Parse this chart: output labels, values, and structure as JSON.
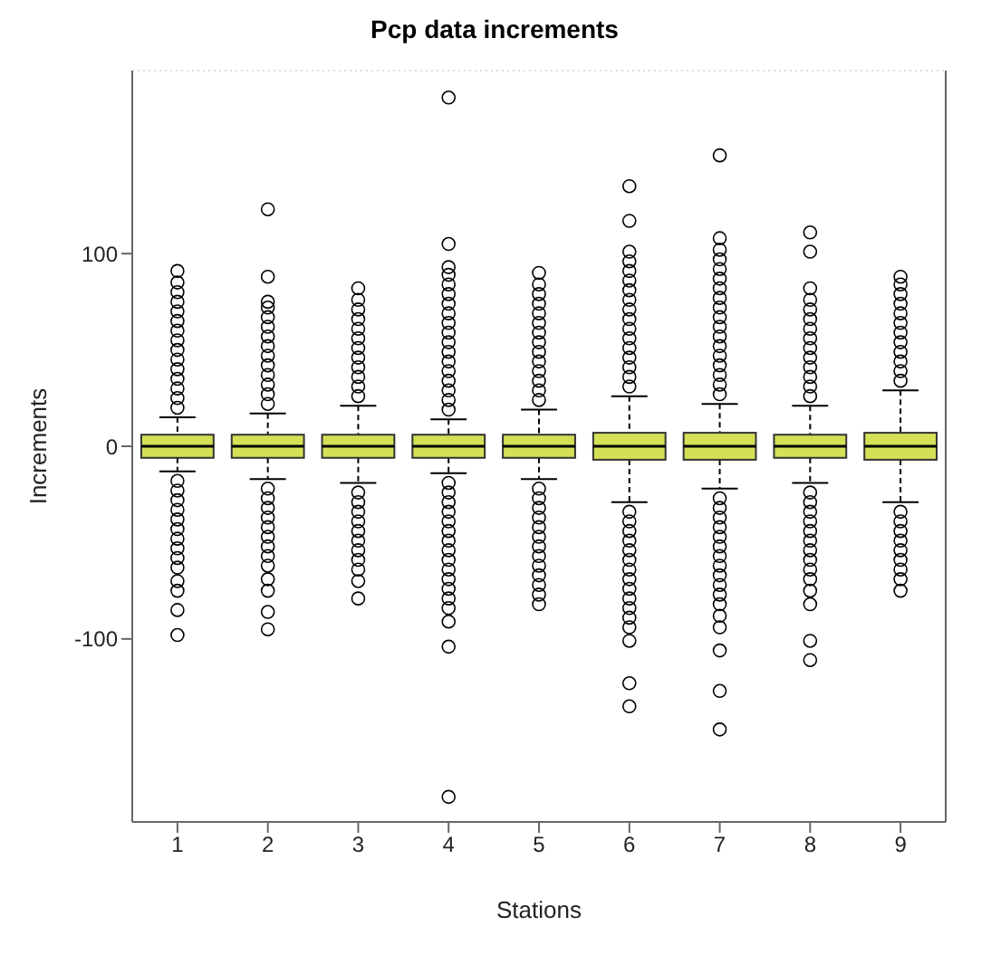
{
  "chart_data": {
    "type": "box",
    "title": "Pcp data increments",
    "xlabel": "Stations",
    "ylabel": "Increments",
    "categories": [
      "1",
      "2",
      "3",
      "4",
      "5",
      "6",
      "7",
      "8",
      "9"
    ],
    "color": "#d4e157",
    "ylim": [
      -195,
      195
    ],
    "yticks": [
      -100,
      0,
      100
    ],
    "grid": true,
    "marker": "circle",
    "boxes": [
      {
        "low": -13,
        "q1": -6,
        "median": 0,
        "q3": 6,
        "high": 15,
        "outliers": [
          20,
          25,
          30,
          35,
          40,
          45,
          50,
          55,
          60,
          65,
          70,
          75,
          80,
          85,
          91,
          -18,
          -23,
          -28,
          -33,
          -38,
          -43,
          -48,
          -53,
          -58,
          -63,
          -70,
          -75,
          -85,
          -98
        ]
      },
      {
        "low": -17,
        "q1": -6,
        "median": 0,
        "q3": 6,
        "high": 17,
        "outliers": [
          22,
          27,
          32,
          37,
          42,
          47,
          52,
          57,
          62,
          67,
          72,
          75,
          88,
          123,
          -22,
          -27,
          -32,
          -37,
          -42,
          -47,
          -52,
          -57,
          -62,
          -69,
          -75,
          -86,
          -95
        ]
      },
      {
        "low": -19,
        "q1": -6,
        "median": 0,
        "q3": 6,
        "high": 21,
        "outliers": [
          26,
          31,
          36,
          41,
          46,
          51,
          56,
          61,
          66,
          71,
          76,
          82,
          -24,
          -29,
          -34,
          -39,
          -44,
          -49,
          -54,
          -59,
          -64,
          -70,
          -79
        ]
      },
      {
        "low": -14,
        "q1": -6,
        "median": 0,
        "q3": 6,
        "high": 14,
        "outliers": [
          19,
          24,
          29,
          34,
          39,
          44,
          49,
          54,
          59,
          64,
          69,
          74,
          79,
          84,
          89,
          93,
          105,
          181,
          -19,
          -24,
          -29,
          -34,
          -39,
          -44,
          -49,
          -54,
          -59,
          -64,
          -69,
          -74,
          -79,
          -84,
          -91,
          -104,
          -182
        ]
      },
      {
        "low": -17,
        "q1": -6,
        "median": 0,
        "q3": 6,
        "high": 19,
        "outliers": [
          24,
          29,
          34,
          39,
          44,
          49,
          54,
          59,
          64,
          69,
          74,
          79,
          84,
          90,
          -22,
          -27,
          -32,
          -37,
          -42,
          -47,
          -52,
          -57,
          -62,
          -67,
          -72,
          -77,
          -82
        ]
      },
      {
        "low": -29,
        "q1": -7,
        "median": 0,
        "q3": 7,
        "high": 26,
        "outliers": [
          31,
          36,
          41,
          46,
          51,
          56,
          61,
          66,
          71,
          76,
          81,
          86,
          91,
          96,
          101,
          117,
          135,
          -34,
          -39,
          -44,
          -49,
          -54,
          -59,
          -64,
          -69,
          -74,
          -79,
          -84,
          -89,
          -94,
          -101,
          -123,
          -135
        ]
      },
      {
        "low": -22,
        "q1": -7,
        "median": 0,
        "q3": 7,
        "high": 22,
        "outliers": [
          27,
          32,
          37,
          42,
          47,
          52,
          57,
          62,
          67,
          72,
          77,
          82,
          87,
          92,
          97,
          102,
          108,
          151,
          -27,
          -32,
          -37,
          -42,
          -47,
          -52,
          -57,
          -62,
          -67,
          -72,
          -77,
          -82,
          -88,
          -94,
          -106,
          -127,
          -147
        ]
      },
      {
        "low": -19,
        "q1": -6,
        "median": 0,
        "q3": 6,
        "high": 21,
        "outliers": [
          26,
          31,
          36,
          41,
          46,
          51,
          56,
          61,
          66,
          71,
          76,
          82,
          101,
          111,
          -24,
          -29,
          -34,
          -39,
          -44,
          -49,
          -54,
          -59,
          -64,
          -69,
          -75,
          -82,
          -101,
          -111
        ]
      },
      {
        "low": -29,
        "q1": -7,
        "median": 0,
        "q3": 7,
        "high": 29,
        "outliers": [
          34,
          39,
          44,
          49,
          54,
          59,
          64,
          69,
          74,
          79,
          84,
          88,
          -34,
          -39,
          -44,
          -49,
          -54,
          -59,
          -64,
          -69,
          -75
        ]
      }
    ]
  }
}
